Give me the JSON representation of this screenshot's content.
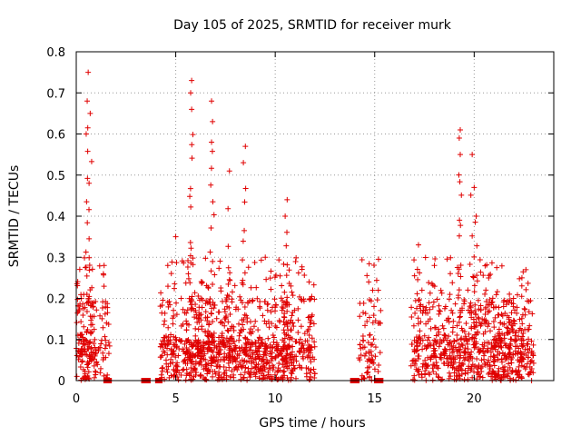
{
  "chart_data": {
    "type": "scatter",
    "title": "Day 105 of 2025, SRMTID for receiver murk",
    "xlabel": "GPS time / hours",
    "ylabel": "SRMTID / TECUs",
    "xlim": [
      0,
      24
    ],
    "ylim": [
      0,
      0.8
    ],
    "xticks": [
      0,
      5,
      10,
      15,
      20
    ],
    "yticks": [
      0,
      0.1,
      0.2,
      0.3,
      0.4,
      0.5,
      0.6,
      0.7,
      0.8
    ],
    "ytick_labels": [
      "0",
      "0.1",
      "0.2",
      "0.3",
      "0.4",
      "0.5",
      "0.6",
      "0.7",
      "0.8"
    ],
    "grid": true,
    "marker": "plus",
    "series": [
      {
        "name": "SRMTID",
        "color": "#e00000",
        "clusters": [
          {
            "x_range": [
              0.0,
              1.0
            ],
            "count": 150,
            "peaks": [
              [
                0.6,
                0.75
              ],
              [
                0.55,
                0.68
              ],
              [
                0.7,
                0.65
              ],
              [
                0.5,
                0.6
              ]
            ]
          },
          {
            "x_range": [
              1.0,
              1.7
            ],
            "count": 40,
            "peaks": [
              [
                1.4,
                0.28
              ]
            ]
          },
          {
            "x_range": [
              4.2,
              5.5
            ],
            "count": 120,
            "peaks": [
              [
                5.0,
                0.35
              ],
              [
                4.6,
                0.28
              ]
            ]
          },
          {
            "x_range": [
              5.5,
              6.5
            ],
            "count": 170,
            "peaks": [
              [
                5.8,
                0.73
              ],
              [
                5.75,
                0.7
              ],
              [
                5.8,
                0.66
              ]
            ]
          },
          {
            "x_range": [
              6.5,
              7.5
            ],
            "count": 150,
            "peaks": [
              [
                6.8,
                0.68
              ],
              [
                6.85,
                0.63
              ],
              [
                6.8,
                0.58
              ]
            ]
          },
          {
            "x_range": [
              7.5,
              8.8
            ],
            "count": 170,
            "peaks": [
              [
                8.5,
                0.57
              ],
              [
                8.4,
                0.53
              ],
              [
                7.7,
                0.51
              ]
            ]
          },
          {
            "x_range": [
              8.8,
              10.3
            ],
            "count": 180,
            "peaks": [
              [
                9.5,
                0.3
              ]
            ]
          },
          {
            "x_range": [
              10.3,
              11.0
            ],
            "count": 110,
            "peaks": [
              [
                10.6,
                0.44
              ],
              [
                10.5,
                0.4
              ]
            ]
          },
          {
            "x_range": [
              11.0,
              12.0
            ],
            "count": 90,
            "peaks": [
              [
                11.7,
                0.24
              ]
            ]
          },
          {
            "x_range": [
              14.2,
              15.3
            ],
            "count": 70,
            "peaks": [
              [
                14.7,
                0.24
              ],
              [
                14.9,
                0.22
              ]
            ]
          },
          {
            "x_range": [
              16.8,
              18.5
            ],
            "count": 170,
            "peaks": [
              [
                17.2,
                0.33
              ],
              [
                18.0,
                0.28
              ]
            ]
          },
          {
            "x_range": [
              18.5,
              19.5
            ],
            "count": 120,
            "peaks": [
              [
                19.3,
                0.61
              ],
              [
                19.25,
                0.59
              ],
              [
                19.3,
                0.55
              ]
            ]
          },
          {
            "x_range": [
              19.5,
              20.5
            ],
            "count": 120,
            "peaks": [
              [
                19.9,
                0.55
              ],
              [
                20.0,
                0.47
              ],
              [
                20.1,
                0.4
              ]
            ]
          },
          {
            "x_range": [
              20.5,
              22.0
            ],
            "count": 220,
            "peaks": [
              [
                21.0,
                0.13
              ]
            ]
          },
          {
            "x_range": [
              22.0,
              23.0
            ],
            "count": 110,
            "peaks": [
              [
                22.6,
                0.27
              ],
              [
                22.4,
                0.25
              ]
            ]
          }
        ],
        "zero_markers": [
          1.5,
          1.65,
          3.4,
          3.5,
          3.6,
          4.1,
          4.2,
          13.9,
          14.0,
          14.1,
          15.1,
          15.2,
          15.3
        ]
      }
    ]
  }
}
